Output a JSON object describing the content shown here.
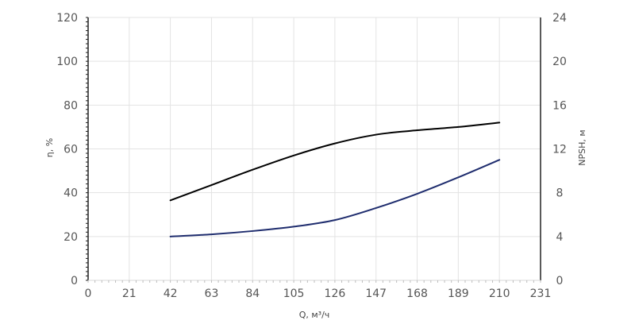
{
  "chart_data": {
    "type": "line",
    "title": "",
    "xlabel": "Q, м³/ч",
    "ylabel_left": "η, %",
    "ylabel_right": "NPSH, м",
    "x_ticks": [
      "0",
      "21",
      "42",
      "63",
      "84",
      "105",
      "126",
      "147",
      "168",
      "189",
      "210",
      "231"
    ],
    "y_left_ticks": [
      "0",
      "20",
      "40",
      "60",
      "80",
      "100",
      "120"
    ],
    "y_right_ticks": [
      "0",
      "4",
      "8",
      "12",
      "16",
      "20",
      "24"
    ],
    "xlim": [
      0,
      231
    ],
    "ylim_left": [
      0,
      120
    ],
    "ylim_right": [
      0,
      24
    ],
    "grid": true,
    "series": [
      {
        "axis": "left",
        "color": "#000000",
        "x": [
          42,
          63,
          84,
          105,
          126,
          147,
          168,
          189,
          210
        ],
        "y": [
          36.5,
          43.5,
          50.5,
          57,
          62.5,
          66.5,
          68.5,
          70,
          72
        ]
      },
      {
        "axis": "right",
        "color": "#1f2d6e",
        "x": [
          42,
          63,
          84,
          105,
          126,
          147,
          168,
          189,
          210
        ],
        "y": [
          4.0,
          4.2,
          4.5,
          4.9,
          5.5,
          6.6,
          7.9,
          9.4,
          11.0
        ]
      }
    ]
  }
}
